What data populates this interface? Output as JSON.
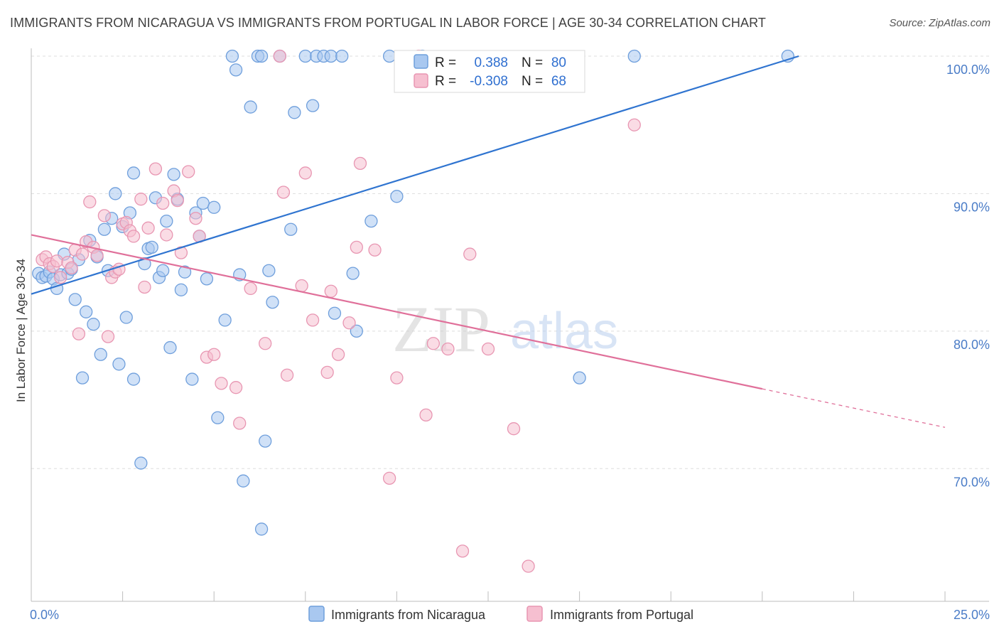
{
  "title": "IMMIGRANTS FROM NICARAGUA VS IMMIGRANTS FROM PORTUGAL IN LABOR FORCE | AGE 30-34 CORRELATION CHART",
  "source": "Source: ZipAtlas.com",
  "watermark": {
    "zip": "ZIP",
    "atlas": "atlas"
  },
  "legend_box": {
    "rows": [
      {
        "r_label": "R =",
        "r_value": "0.388",
        "n_label": "N =",
        "n_value": "80"
      },
      {
        "r_label": "R =",
        "r_value": "-0.308",
        "n_label": "N =",
        "n_value": "68"
      }
    ]
  },
  "bottom_legend": [
    "Immigrants from Nicaragua",
    "Immigrants from Portugal"
  ],
  "colors": {
    "blue_fill": "#a9c8f0",
    "blue_stroke": "#6f9fdc",
    "blue_line": "#2f74d0",
    "pink_fill": "#f6bfd0",
    "pink_stroke": "#e896b2",
    "pink_line": "#e0709a",
    "axis_text": "#4a7cc7",
    "grid": "#dddddd"
  },
  "chart_data": {
    "type": "scatter",
    "title": "IMMIGRANTS FROM NICARAGUA VS IMMIGRANTS FROM PORTUGAL IN LABOR FORCE | AGE 30-34 CORRELATION CHART",
    "xlabel": "",
    "ylabel": "In Labor Force | Age 30-34",
    "xlim": [
      0,
      25
    ],
    "ylim": [
      61.5,
      101
    ],
    "x_tick_labels": [
      "0.0%",
      "25.0%"
    ],
    "y_ticks": [
      70,
      80,
      90,
      100
    ],
    "y_tick_labels": [
      "70.0%",
      "80.0%",
      "90.0%",
      "100.0%"
    ],
    "grid": true,
    "series": [
      {
        "name": "Immigrants from Nicaragua",
        "r": 0.388,
        "n": 80,
        "trend": {
          "x0": 0,
          "y0": 82.7,
          "x1": 21.0,
          "y1": 100.0
        },
        "points": [
          [
            0.2,
            84.2
          ],
          [
            0.3,
            83.9
          ],
          [
            0.4,
            84.0
          ],
          [
            0.5,
            84.3
          ],
          [
            0.6,
            83.8
          ],
          [
            0.7,
            83.1
          ],
          [
            0.8,
            84.1
          ],
          [
            0.9,
            85.6
          ],
          [
            1.0,
            84.2
          ],
          [
            1.1,
            84.5
          ],
          [
            1.2,
            82.3
          ],
          [
            1.3,
            85.2
          ],
          [
            1.4,
            76.6
          ],
          [
            1.5,
            81.4
          ],
          [
            1.6,
            86.6
          ],
          [
            1.7,
            80.5
          ],
          [
            1.8,
            85.4
          ],
          [
            1.9,
            78.3
          ],
          [
            2.0,
            87.4
          ],
          [
            2.1,
            84.4
          ],
          [
            2.2,
            88.2
          ],
          [
            2.3,
            90.0
          ],
          [
            2.4,
            77.6
          ],
          [
            2.5,
            87.6
          ],
          [
            2.6,
            81.0
          ],
          [
            2.7,
            88.6
          ],
          [
            2.8,
            76.5
          ],
          [
            2.8,
            91.5
          ],
          [
            3.0,
            70.4
          ],
          [
            3.1,
            84.9
          ],
          [
            3.2,
            86.0
          ],
          [
            3.3,
            86.1
          ],
          [
            3.4,
            89.7
          ],
          [
            3.5,
            83.9
          ],
          [
            3.6,
            84.4
          ],
          [
            3.7,
            88.0
          ],
          [
            3.8,
            78.8
          ],
          [
            3.9,
            91.4
          ],
          [
            4.0,
            89.6
          ],
          [
            4.1,
            83.0
          ],
          [
            4.2,
            84.3
          ],
          [
            4.4,
            76.5
          ],
          [
            4.5,
            88.6
          ],
          [
            4.7,
            89.3
          ],
          [
            4.8,
            83.8
          ],
          [
            5.0,
            89.0
          ],
          [
            5.1,
            73.7
          ],
          [
            5.3,
            80.8
          ],
          [
            5.5,
            100.0
          ],
          [
            5.6,
            99.0
          ],
          [
            5.7,
            84.1
          ],
          [
            5.8,
            69.1
          ],
          [
            6.0,
            96.3
          ],
          [
            6.2,
            100.0
          ],
          [
            6.3,
            65.6
          ],
          [
            6.4,
            72.0
          ],
          [
            6.5,
            84.4
          ],
          [
            6.6,
            82.1
          ],
          [
            6.8,
            100.0
          ],
          [
            7.1,
            87.4
          ],
          [
            7.2,
            95.9
          ],
          [
            7.5,
            100.0
          ],
          [
            7.7,
            96.4
          ],
          [
            7.8,
            100.0
          ],
          [
            8.0,
            100.0
          ],
          [
            8.2,
            100.0
          ],
          [
            8.3,
            81.3
          ],
          [
            8.5,
            100.0
          ],
          [
            8.8,
            84.2
          ],
          [
            8.9,
            80.0
          ],
          [
            9.3,
            88.0
          ],
          [
            9.8,
            100.0
          ],
          [
            10.0,
            89.8
          ],
          [
            10.3,
            98.6
          ],
          [
            10.7,
            100.0
          ],
          [
            15.0,
            76.6
          ],
          [
            16.5,
            100.0
          ],
          [
            20.7,
            100.0
          ],
          [
            4.6,
            86.9
          ],
          [
            6.3,
            100.0
          ]
        ]
      },
      {
        "name": "Immigrants from Portugal",
        "r": -0.308,
        "n": 68,
        "trend": {
          "x0": 0,
          "y0": 87.0,
          "x1": 20.0,
          "y1": 75.8,
          "dash_to_x": 25.0,
          "dash_to_y": 73.0
        },
        "points": [
          [
            0.3,
            85.2
          ],
          [
            0.4,
            85.4
          ],
          [
            0.5,
            84.9
          ],
          [
            0.6,
            84.7
          ],
          [
            0.7,
            85.1
          ],
          [
            0.8,
            83.9
          ],
          [
            1.0,
            85.0
          ],
          [
            1.1,
            84.6
          ],
          [
            1.2,
            85.9
          ],
          [
            1.3,
            79.8
          ],
          [
            1.4,
            85.6
          ],
          [
            1.5,
            86.5
          ],
          [
            1.6,
            89.4
          ],
          [
            1.7,
            86.1
          ],
          [
            1.8,
            85.5
          ],
          [
            2.0,
            88.4
          ],
          [
            2.1,
            79.6
          ],
          [
            2.2,
            83.9
          ],
          [
            2.3,
            84.3
          ],
          [
            2.4,
            84.5
          ],
          [
            2.5,
            87.8
          ],
          [
            2.6,
            87.9
          ],
          [
            2.7,
            87.3
          ],
          [
            2.8,
            86.9
          ],
          [
            3.0,
            89.6
          ],
          [
            3.1,
            83.2
          ],
          [
            3.2,
            87.5
          ],
          [
            3.4,
            91.8
          ],
          [
            3.6,
            89.3
          ],
          [
            3.7,
            87.0
          ],
          [
            3.9,
            90.2
          ],
          [
            4.0,
            89.5
          ],
          [
            4.1,
            85.7
          ],
          [
            4.3,
            91.6
          ],
          [
            4.5,
            88.2
          ],
          [
            4.6,
            86.9
          ],
          [
            4.8,
            78.1
          ],
          [
            5.0,
            78.3
          ],
          [
            5.2,
            76.2
          ],
          [
            5.6,
            75.9
          ],
          [
            5.7,
            73.3
          ],
          [
            6.0,
            83.1
          ],
          [
            6.4,
            79.1
          ],
          [
            6.8,
            100.0
          ],
          [
            6.9,
            90.1
          ],
          [
            7.0,
            76.8
          ],
          [
            7.4,
            83.3
          ],
          [
            7.5,
            91.5
          ],
          [
            7.7,
            80.8
          ],
          [
            8.1,
            77.0
          ],
          [
            8.2,
            82.9
          ],
          [
            8.4,
            78.3
          ],
          [
            8.7,
            80.6
          ],
          [
            8.9,
            86.1
          ],
          [
            9.0,
            92.2
          ],
          [
            9.4,
            85.9
          ],
          [
            9.8,
            69.3
          ],
          [
            10.0,
            76.6
          ],
          [
            10.6,
            100.0
          ],
          [
            10.8,
            73.9
          ],
          [
            11.0,
            79.1
          ],
          [
            11.4,
            78.7
          ],
          [
            11.8,
            64.0
          ],
          [
            12.0,
            85.6
          ],
          [
            12.5,
            78.7
          ],
          [
            13.2,
            72.9
          ],
          [
            13.6,
            62.9
          ],
          [
            16.5,
            95.0
          ]
        ]
      }
    ]
  }
}
